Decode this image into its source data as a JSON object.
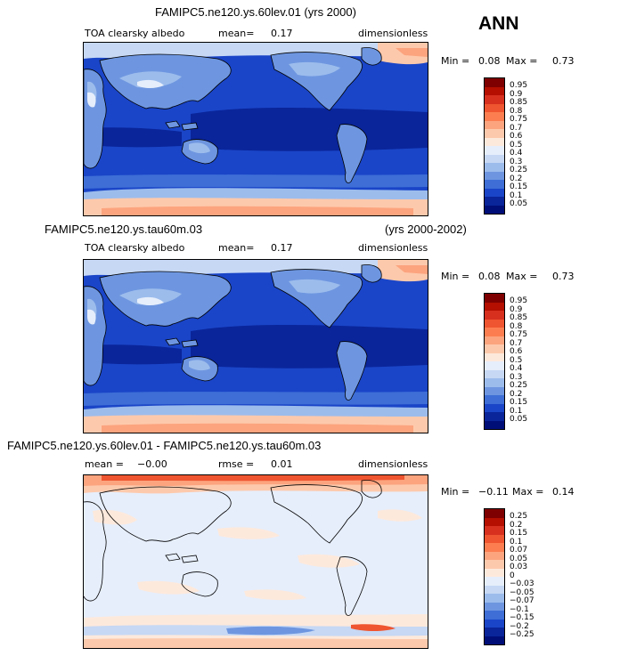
{
  "season": "ANN",
  "panels": [
    {
      "title": "FAMIPC5.ne120.ys.60lev.01 (yrs 2000)",
      "title_right": "",
      "variable": "TOA clearsky albedo",
      "mean_label": "mean=",
      "mean_value": "0.17",
      "extra_label": "",
      "extra_value": "",
      "units": "dimensionless",
      "min_label": "Min =",
      "min_value": "0.08",
      "max_label": "Max =",
      "max_value": "0.73"
    },
    {
      "title": "FAMIPC5.ne120.ys.tau60m.03",
      "title_right": "(yrs 2000-2002)",
      "variable": "TOA clearsky albedo",
      "mean_label": "mean=",
      "mean_value": "0.17",
      "extra_label": "",
      "extra_value": "",
      "units": "dimensionless",
      "min_label": "Min =",
      "min_value": "0.08",
      "max_label": "Max =",
      "max_value": "0.73"
    },
    {
      "title": "FAMIPC5.ne120.ys.60lev.01 - FAMIPC5.ne120.ys.tau60m.03",
      "title_right": "",
      "variable": "",
      "mean_label": "mean =",
      "mean_value": "−0.00",
      "extra_label": "rmse =",
      "extra_value": "0.01",
      "units": "dimensionless",
      "min_label": "Min =",
      "min_value": "−0.11",
      "max_label": "Max =",
      "max_value": "0.14"
    }
  ],
  "colorbars": {
    "albedo": {
      "labels": [
        "0.95",
        "0.9",
        "0.85",
        "0.8",
        "0.75",
        "0.7",
        "0.6",
        "0.5",
        "0.4",
        "0.3",
        "0.25",
        "0.2",
        "0.15",
        "0.1",
        "0.05"
      ],
      "colors": [
        "#7f0000",
        "#b40f00",
        "#d7301f",
        "#ef5530",
        "#fc7e50",
        "#fca47e",
        "#fdc9ac",
        "#fde9dc",
        "#e6eefb",
        "#c6d8f4",
        "#9cbcec",
        "#6e96e0",
        "#3e6ed6",
        "#1a45c8",
        "#0a259a",
        "#000e78"
      ]
    },
    "diff": {
      "labels": [
        "0.25",
        "0.2",
        "0.15",
        "0.1",
        "0.07",
        "0.05",
        "0.03",
        "0",
        "−0.03",
        "−0.05",
        "−0.07",
        "−0.1",
        "−0.15",
        "−0.2",
        "−0.25"
      ],
      "colors": [
        "#7f0000",
        "#b40f00",
        "#d7301f",
        "#ef5530",
        "#fc7e50",
        "#fca47e",
        "#fdc9ac",
        "#fde9dc",
        "#e6eefb",
        "#c6d8f4",
        "#9cbcec",
        "#6e96e0",
        "#3e6ed6",
        "#1a45c8",
        "#0a259a",
        "#000e78"
      ]
    }
  },
  "chart_data": [
    {
      "type": "heatmap",
      "title": "FAMIPC5.ne120.ys.60lev.01 (yrs 2000)",
      "variable": "TOA clearsky albedo",
      "units": "dimensionless",
      "mean": 0.17,
      "min": 0.08,
      "max": 0.73,
      "contour_levels": [
        0.05,
        0.1,
        0.15,
        0.2,
        0.25,
        0.3,
        0.4,
        0.5,
        0.6,
        0.7,
        0.75,
        0.8,
        0.85,
        0.9,
        0.95
      ]
    },
    {
      "type": "heatmap",
      "title": "FAMIPC5.ne120.ys.tau60m.03 (yrs 2000-2002)",
      "variable": "TOA clearsky albedo",
      "units": "dimensionless",
      "mean": 0.17,
      "min": 0.08,
      "max": 0.73,
      "contour_levels": [
        0.05,
        0.1,
        0.15,
        0.2,
        0.25,
        0.3,
        0.4,
        0.5,
        0.6,
        0.7,
        0.75,
        0.8,
        0.85,
        0.9,
        0.95
      ]
    },
    {
      "type": "heatmap",
      "title": "FAMIPC5.ne120.ys.60lev.01 - FAMIPC5.ne120.ys.tau60m.03",
      "units": "dimensionless",
      "mean": -0.0,
      "rmse": 0.01,
      "min": -0.11,
      "max": 0.14,
      "contour_levels": [
        -0.25,
        -0.2,
        -0.15,
        -0.1,
        -0.07,
        -0.05,
        -0.03,
        0,
        0.03,
        0.05,
        0.07,
        0.1,
        0.15,
        0.2,
        0.25
      ]
    }
  ]
}
